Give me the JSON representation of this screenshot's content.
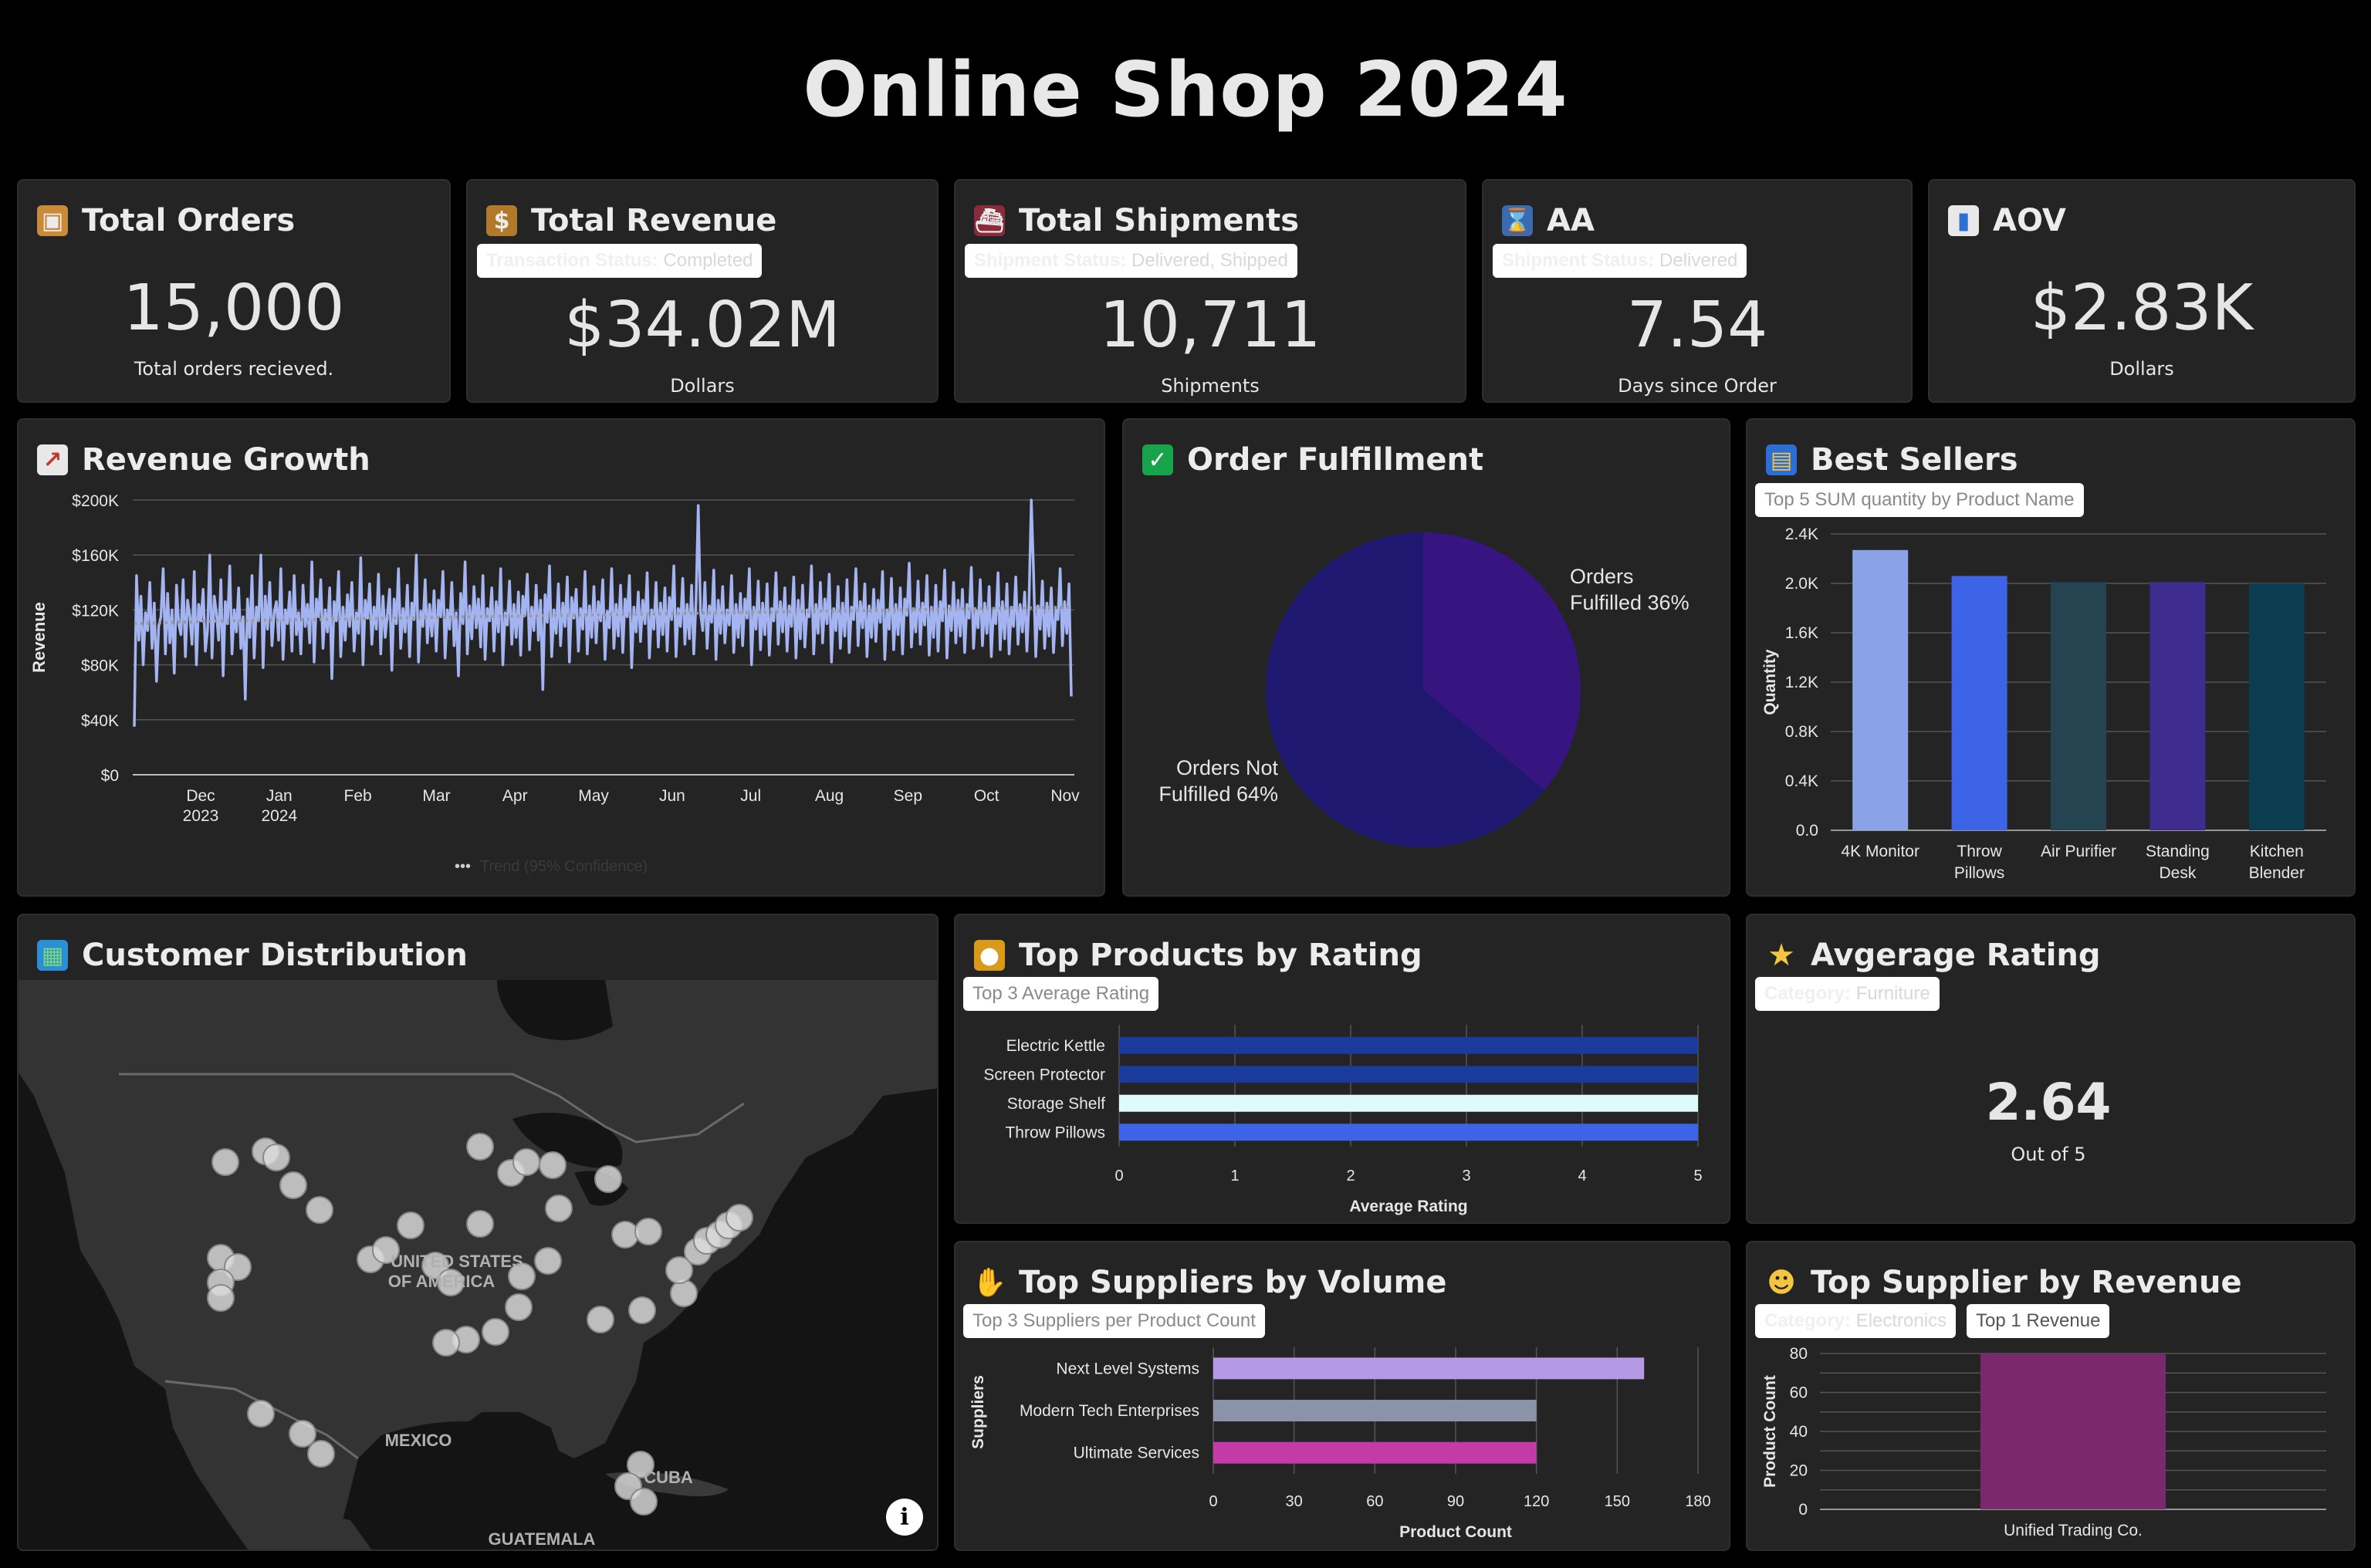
{
  "title": "Online Shop 2024",
  "kpis": {
    "orders": {
      "icon": "package-icon",
      "title": "Total Orders",
      "value": "15,000",
      "sub": "Total orders recieved."
    },
    "revenue": {
      "icon": "money-bag-icon",
      "title": "Total Revenue",
      "filter_key": "Transaction Status:",
      "filter_val": "Completed",
      "value": "$34.02M",
      "sub": "Dollars"
    },
    "shipments": {
      "icon": "ship-icon",
      "title": "Total Shipments",
      "filter_key": "Shipment Status:",
      "filter_val": "Delivered, Shipped",
      "value": "10,711",
      "sub": "Shipments"
    },
    "aa": {
      "icon": "hourglass-icon",
      "title": "AA",
      "filter_key": "Shipment Status:",
      "filter_val": "Delivered",
      "value": "7.54",
      "sub": "Days since Order"
    },
    "aov": {
      "icon": "bar-chart-icon",
      "title": "AOV",
      "value": "$2.83K",
      "sub": "Dollars"
    }
  },
  "revenue_growth": {
    "icon": "chart-increasing-icon",
    "title": "Revenue Growth",
    "legend": "Trend (95% Confidence)"
  },
  "order_fulfillment": {
    "icon": "check-box-icon",
    "title": "Order Fulfillment",
    "label_fulfilled_1": "Orders",
    "label_fulfilled_2": "Fulfilled 36%",
    "label_not_1": "Orders Not",
    "label_not_2": "Fulfilled 64%"
  },
  "best_sellers": {
    "icon": "shopping-bags-icon",
    "title": "Best Sellers",
    "filter": "Top 5 SUM quantity by Product Name"
  },
  "customer_distribution": {
    "icon": "map-icon",
    "title": "Customer Distribution",
    "labels": {
      "usa_1": "UNITED STATES",
      "usa_2": "OF AMERICA",
      "mexico": "MEXICO",
      "cuba": "CUBA",
      "guatemala": "GUATEMALA"
    },
    "info": "i"
  },
  "top_products": {
    "icon": "medal-icon",
    "title": "Top Products by Rating",
    "filter": "Top 3 Average Rating"
  },
  "avg_rating": {
    "icon": "star-icon",
    "title": "Avgerage Rating",
    "filter_key": "Category:",
    "filter_val": "Furniture",
    "value": "2.64",
    "sub": "Out of 5"
  },
  "top_suppliers": {
    "icon": "handshake-icon",
    "title": "Top Suppliers by Volume",
    "filter": "Top 3 Suppliers per Product Count"
  },
  "top_supplier_rev": {
    "icon": "worker-icon",
    "title": "Top Supplier by Revenue",
    "filter_key": "Category:",
    "filter_val": "Electronics",
    "filter2": "Top 1 Revenue"
  },
  "colors": {
    "background": "#000000",
    "card": "#242424",
    "line": "#a3b4f0",
    "pie_fulfilled": "#361580",
    "pie_not": "#1e1870"
  },
  "chart_data": [
    {
      "id": "revenue_growth",
      "type": "line",
      "ylabel": "Revenue",
      "ylim": [
        0,
        200000
      ],
      "yticks": [
        "$0",
        "$40K",
        "$80K",
        "$120K",
        "$160K",
        "$200K"
      ],
      "xticks": [
        [
          "Dec",
          "2023"
        ],
        [
          "Jan",
          "2024"
        ],
        [
          "Feb",
          ""
        ],
        [
          "Mar",
          ""
        ],
        [
          "Apr",
          ""
        ],
        [
          "May",
          ""
        ],
        [
          "Jun",
          ""
        ],
        [
          "Jul",
          ""
        ],
        [
          "Aug",
          ""
        ],
        [
          "Sep",
          ""
        ],
        [
          "Oct",
          ""
        ],
        [
          "Nov",
          ""
        ]
      ],
      "series": [
        {
          "values": [
            35000,
            145000,
            98000,
            130000,
            80000,
            118000,
            105000,
            140000,
            92000,
            125000,
            68000,
            108000,
            115000,
            150000,
            88000,
            132000,
            96000,
            120000,
            74000,
            138000,
            110000,
            102000,
            142000,
            86000,
            127000,
            116000,
            95000,
            148000,
            80000,
            124000,
            112000,
            135000,
            90000,
            105000,
            160000,
            85000,
            130000,
            118000,
            98000,
            142000,
            72000,
            126000,
            110000,
            152000,
            88000,
            120000,
            104000,
            136000,
            92000,
            115000,
            55000,
            128000,
            100000,
            145000,
            85000,
            122000,
            112000,
            160000,
            78000,
            130000,
            106000,
            140000,
            94000,
            118000,
            126000,
            98000,
            150000,
            84000,
            120000,
            110000,
            133000,
            90000,
            145000,
            102000,
            118000,
            88000,
            138000,
            108000,
            124000,
            96000,
            155000,
            82000,
            128000,
            115000,
            142000,
            92000,
            120000,
            104000,
            136000,
            70000,
            126000,
            112000,
            148000,
            86000,
            122000,
            98000,
            131000,
            108000,
            140000,
            90000,
            118000,
            103000,
            158000,
            80000,
            127000,
            114000,
            139000,
            95000,
            122000,
            106000,
            146000,
            88000,
            130000,
            100000,
            117000,
            135000,
            76000,
            128000,
            110000,
            150000,
            92000,
            121000,
            104000,
            138000,
            86000,
            125000,
            113000,
            160000,
            82000,
            119000,
            108000,
            142000,
            96000,
            124000,
            101000,
            134000,
            90000,
            127000,
            115000,
            148000,
            85000,
            120000,
            106000,
            140000,
            94000,
            118000,
            72000,
            132000,
            110000,
            155000,
            88000,
            123000,
            99000,
            137000,
            107000,
            128000,
            93000,
            145000,
            84000,
            121000,
            112000,
            136000,
            90000,
            126000,
            104000,
            150000,
            80000,
            118000,
            109000,
            141000,
            95000,
            124000,
            100000,
            133000,
            87000,
            130000,
            116000,
            146000,
            91000,
            122000,
            105000,
            138000,
            98000,
            127000,
            62000,
            131000,
            111000,
            152000,
            86000,
            120000,
            103000,
            139000,
            94000,
            125000,
            108000,
            144000,
            82000,
            129000,
            114000,
            135000,
            90000,
            121000,
            106000,
            148000,
            88000,
            123000,
            100000,
            137000,
            96000,
            126000,
            112000,
            142000,
            84000,
            119000,
            107000,
            150000,
            92000,
            124000,
            101000,
            138000,
            89000,
            128000,
            115000,
            145000,
            78000,
            122000,
            104000,
            133000,
            97000,
            127000,
            110000,
            147000,
            85000,
            120000,
            106000,
            140000,
            93000,
            125000,
            102000,
            136000,
            90000,
            129000,
            113000,
            152000,
            86000,
            121000,
            108000,
            143000,
            95000,
            124000,
            99000,
            138000,
            88000,
            126000,
            196000,
            118000,
            105000,
            140000,
            92000,
            123000,
            111000,
            149000,
            84000,
            127000,
            103000,
            137000,
            96000,
            120000,
            109000,
            145000,
            89000,
            124000,
            100000,
            132000,
            94000,
            128000,
            114000,
            150000,
            80000,
            122000,
            106000,
            141000,
            91000,
            125000,
            102000,
            139000,
            87000,
            121000,
            112000,
            147000,
            95000,
            126000,
            104000,
            136000,
            90000,
            123000,
            108000,
            144000,
            85000,
            127000,
            99000,
            138000,
            93000,
            120000,
            115000,
            152000,
            88000,
            124000,
            103000,
            140000,
            96000,
            128000,
            110000,
            146000,
            82000,
            121000,
            105000,
            137000,
            92000,
            125000,
            101000,
            142000,
            89000,
            122000,
            113000,
            150000,
            94000,
            126000,
            107000,
            139000,
            86000,
            123000,
            100000,
            135000,
            97000,
            127000,
            111000,
            148000,
            84000,
            120000,
            106000,
            143000,
            91000,
            124000,
            102000,
            136000,
            88000,
            128000,
            116000,
            154000,
            93000,
            121000,
            104000,
            141000,
            95000,
            125000,
            109000,
            145000,
            87000,
            122000,
            100000,
            138000,
            90000,
            126000,
            112000,
            149000,
            85000,
            123000,
            105000,
            140000,
            96000,
            127000,
            101000,
            135000,
            89000,
            124000,
            114000,
            151000,
            92000,
            120000,
            107000,
            142000,
            94000,
            125000,
            103000,
            137000,
            86000,
            121000,
            110000,
            147000,
            91000,
            126000,
            99000,
            139000,
            88000,
            122000,
            108000,
            144000,
            95000,
            124000,
            104000,
            133000,
            90000,
            127000,
            200000,
            148000,
            86000,
            123000,
            106000,
            141000,
            92000,
            125000,
            101000,
            136000,
            89000,
            120000,
            113000,
            150000,
            94000,
            126000,
            103000,
            139000,
            57000
          ]
        },
        {
          "name": "Trend (95% Confidence)",
          "values": [
            110000,
            112000,
            113000,
            114000,
            115000,
            116000,
            117000,
            118000,
            119000,
            120000,
            121000,
            122000
          ]
        }
      ]
    },
    {
      "id": "order_fulfillment",
      "type": "pie",
      "categories": [
        "Orders Fulfilled",
        "Orders Not Fulfilled"
      ],
      "values": [
        36,
        64
      ]
    },
    {
      "id": "best_sellers",
      "type": "bar",
      "categories": [
        "4K Monitor",
        "Throw Pillows",
        "Air Purifier",
        "Standing Desk",
        "Kitchen Blender"
      ],
      "category_lines": [
        [
          "4K Monitor"
        ],
        [
          "Throw",
          "Pillows"
        ],
        [
          "Air Purifier"
        ],
        [
          "Standing",
          "Desk"
        ],
        [
          "Kitchen",
          "Blender"
        ]
      ],
      "values": [
        2270,
        2060,
        2010,
        2010,
        2000
      ],
      "colors": [
        "#8aa3e8",
        "#3d63e6",
        "#254452",
        "#3e2d8f",
        "#0c3c50"
      ],
      "ylabel": "Quantity",
      "ylim": [
        0,
        2400
      ],
      "yticks": [
        "0.0",
        "0.4K",
        "0.8K",
        "1.2K",
        "1.6K",
        "2.0K",
        "2.4K"
      ]
    },
    {
      "id": "top_products",
      "type": "bar",
      "orientation": "horizontal",
      "categories": [
        "Electric Kettle",
        "Screen Protector",
        "Storage Shelf",
        "Throw Pillows"
      ],
      "values": [
        5,
        5,
        5,
        5
      ],
      "colors": [
        "#1b3b9c",
        "#1b3b9c",
        "#dffafa",
        "#3d63e6"
      ],
      "xlabel": "Average Rating",
      "xlim": [
        0,
        5
      ],
      "xticks": [
        "0",
        "1",
        "2",
        "3",
        "4",
        "5"
      ]
    },
    {
      "id": "top_suppliers",
      "type": "bar",
      "orientation": "horizontal",
      "categories": [
        "Next Level Systems",
        "Modern Tech Enterprises",
        "Ultimate Services"
      ],
      "values": [
        160,
        120,
        120
      ],
      "colors": [
        "#b49ae6",
        "#8a93a8",
        "#c43aa6"
      ],
      "xlabel": "Product Count",
      "ylabel": "Suppliers",
      "xlim": [
        0,
        180
      ],
      "xticks": [
        "0",
        "30",
        "60",
        "90",
        "120",
        "150",
        "180"
      ]
    },
    {
      "id": "top_supplier_rev",
      "type": "bar",
      "categories": [
        "Unified Trading Co."
      ],
      "values": [
        80
      ],
      "colors": [
        "#7a2a6a"
      ],
      "ylabel": "Product Count",
      "ylim": [
        0,
        80
      ],
      "yticks": [
        "0",
        "20",
        "40",
        "60",
        "80"
      ]
    }
  ]
}
